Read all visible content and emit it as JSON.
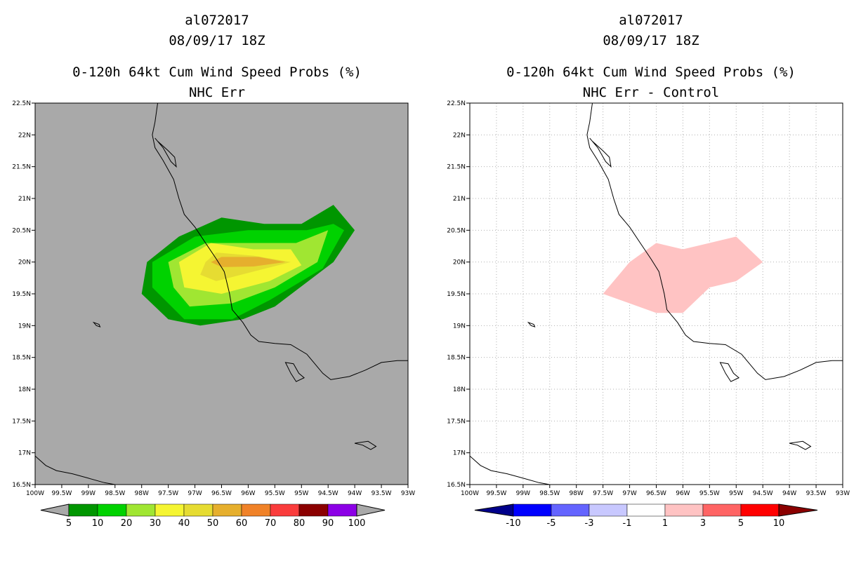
{
  "chart_data": [
    {
      "type": "heatmap",
      "storm_id": "al072017",
      "datetime": "08/09/17 18Z",
      "title": "0-120h 64kt Cum Wind Speed Probs (%)",
      "subtitle": "NHC Err",
      "background": "#a9a9a9",
      "x_ticks": [
        "100W",
        "99.5W",
        "99W",
        "98.5W",
        "98W",
        "97.5W",
        "97W",
        "96.5W",
        "96W",
        "95.5W",
        "95W",
        "94.5W",
        "94W",
        "93.5W",
        "93W"
      ],
      "y_ticks": [
        "22.5N",
        "22N",
        "21.5N",
        "21N",
        "20.5N",
        "20N",
        "19.5N",
        "19N",
        "18.5N",
        "18N",
        "17.5N",
        "17N",
        "16.5N"
      ],
      "xlim": [
        -100,
        -93
      ],
      "ylim": [
        16.5,
        22.5
      ],
      "colorbar_labels": [
        "5",
        "10",
        "20",
        "30",
        "40",
        "50",
        "60",
        "70",
        "80",
        "90",
        "100"
      ],
      "colorbar_colors": [
        "#009600",
        "#00d200",
        "#a0e632",
        "#f5f532",
        "#e6dc32",
        "#e6af2d",
        "#f08228",
        "#fa3c3c",
        "#8b0000",
        "#8c00e6"
      ],
      "contours": [
        {
          "level": 5,
          "color": "#009600",
          "polygon": [
            [
              -98.0,
              19.5
            ],
            [
              -97.9,
              20.0
            ],
            [
              -97.3,
              20.4
            ],
            [
              -96.5,
              20.7
            ],
            [
              -95.7,
              20.6
            ],
            [
              -95.0,
              20.6
            ],
            [
              -94.4,
              20.9
            ],
            [
              -94.0,
              20.5
            ],
            [
              -94.4,
              20.0
            ],
            [
              -95.5,
              19.3
            ],
            [
              -96.1,
              19.1
            ],
            [
              -96.9,
              19.0
            ],
            [
              -97.5,
              19.1
            ]
          ]
        },
        {
          "level": 10,
          "color": "#00d200",
          "polygon": [
            [
              -97.8,
              19.6
            ],
            [
              -97.8,
              20.0
            ],
            [
              -97.0,
              20.4
            ],
            [
              -96.0,
              20.5
            ],
            [
              -94.9,
              20.5
            ],
            [
              -94.4,
              20.6
            ],
            [
              -94.2,
              20.5
            ],
            [
              -94.6,
              19.9
            ],
            [
              -95.6,
              19.4
            ],
            [
              -96.3,
              19.1
            ],
            [
              -97.2,
              19.1
            ]
          ]
        },
        {
          "level": 20,
          "color": "#a0e632",
          "polygon": [
            [
              -97.4,
              19.6
            ],
            [
              -97.5,
              20.0
            ],
            [
              -96.8,
              20.3
            ],
            [
              -95.9,
              20.3
            ],
            [
              -95.1,
              20.3
            ],
            [
              -94.5,
              20.5
            ],
            [
              -94.7,
              20.0
            ],
            [
              -95.5,
              19.6
            ],
            [
              -96.3,
              19.35
            ],
            [
              -97.1,
              19.3
            ]
          ]
        },
        {
          "level": 30,
          "color": "#f5f532",
          "polygon": [
            [
              -97.2,
              19.6
            ],
            [
              -97.3,
              20.0
            ],
            [
              -96.7,
              20.3
            ],
            [
              -95.9,
              20.2
            ],
            [
              -95.2,
              20.2
            ],
            [
              -95.0,
              19.95
            ],
            [
              -95.6,
              19.7
            ],
            [
              -96.5,
              19.5
            ]
          ]
        },
        {
          "level": 40,
          "color": "#e6dc32",
          "polygon": [
            [
              -96.9,
              19.8
            ],
            [
              -96.8,
              20.0
            ],
            [
              -96.6,
              20.15
            ],
            [
              -95.9,
              20.1
            ],
            [
              -95.2,
              20.0
            ],
            [
              -95.9,
              19.85
            ],
            [
              -96.6,
              19.7
            ]
          ]
        },
        {
          "level": 50,
          "color": "#e6af2d",
          "polygon": [
            [
              -96.7,
              20.0
            ],
            [
              -96.5,
              20.08
            ],
            [
              -95.8,
              20.08
            ],
            [
              -95.3,
              20.0
            ],
            [
              -95.9,
              19.93
            ],
            [
              -96.5,
              19.92
            ]
          ]
        }
      ]
    },
    {
      "type": "heatmap",
      "storm_id": "al072017",
      "datetime": "08/09/17 18Z",
      "title": "0-120h 64kt Cum Wind Speed Probs (%)",
      "subtitle": "NHC Err - Control",
      "background": "#ffffff",
      "grid": true,
      "x_ticks": [
        "100W",
        "99.5W",
        "99W",
        "98.5W",
        "98W",
        "97.5W",
        "97W",
        "96.5W",
        "96W",
        "95.5W",
        "95W",
        "94.5W",
        "94W",
        "93.5W",
        "93W"
      ],
      "y_ticks": [
        "22.5N",
        "22N",
        "21.5N",
        "21N",
        "20.5N",
        "20N",
        "19.5N",
        "19N",
        "18.5N",
        "18N",
        "17.5N",
        "17N",
        "16.5N"
      ],
      "xlim": [
        -100,
        -93
      ],
      "ylim": [
        16.5,
        22.5
      ],
      "colorbar_labels": [
        "-10",
        "-5",
        "-3",
        "-1",
        "1",
        "3",
        "5",
        "10"
      ],
      "colorbar_colors": [
        "#00008b",
        "#0000ff",
        "#6464ff",
        "#c8c8ff",
        "#ffffff",
        "#ffc3c3",
        "#ff6464",
        "#ff0000",
        "#8b0000"
      ],
      "contours": [
        {
          "level": 1,
          "color": "#ffc3c3",
          "polygon": [
            [
              -97.5,
              19.5
            ],
            [
              -97.0,
              20.0
            ],
            [
              -96.5,
              20.3
            ],
            [
              -96.0,
              20.2
            ],
            [
              -95.5,
              20.3
            ],
            [
              -95.0,
              20.4
            ],
            [
              -94.5,
              20.0
            ],
            [
              -95.0,
              19.7
            ],
            [
              -95.5,
              19.6
            ],
            [
              -96.0,
              19.2
            ],
            [
              -96.5,
              19.2
            ]
          ]
        }
      ]
    }
  ]
}
